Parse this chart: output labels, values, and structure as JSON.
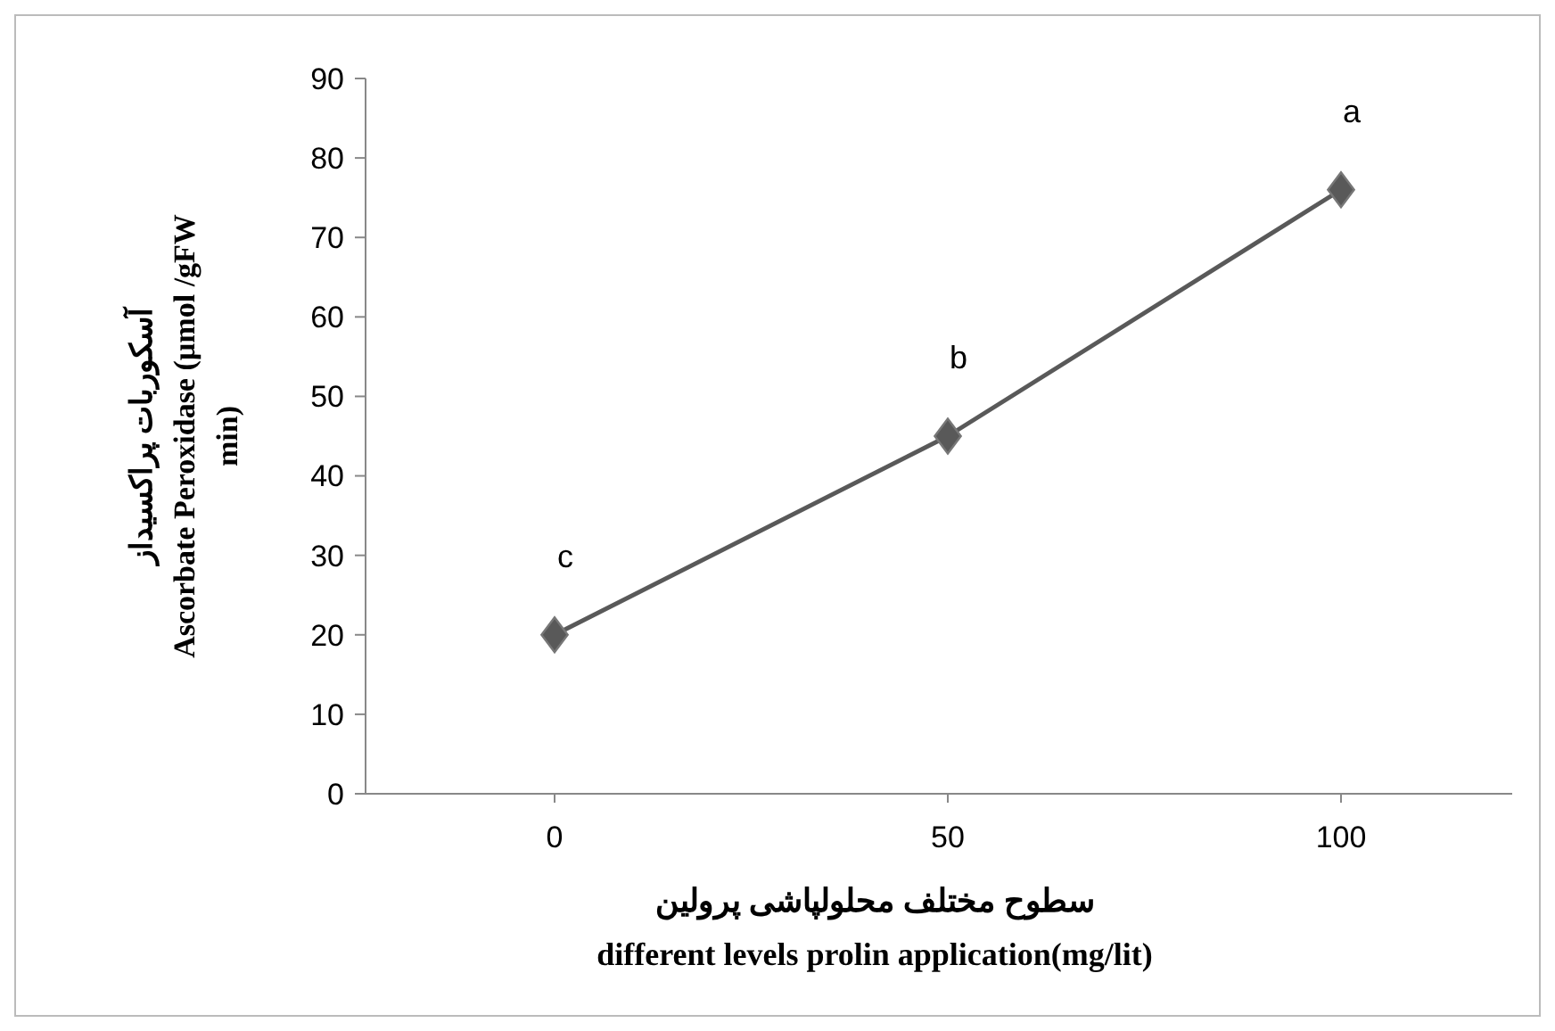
{
  "chart_data": {
    "type": "line",
    "categories": [
      "0",
      "50",
      "100"
    ],
    "series": [
      {
        "color": "#595959",
        "values": [
          20,
          45,
          76
        ]
      }
    ],
    "ylim": [
      0,
      90
    ],
    "yticks": [
      0,
      10,
      20,
      30,
      40,
      50,
      60,
      70,
      80,
      90
    ],
    "xlabel": "سطوح مختلف  محلولپاشی پرولین\ndifferent levels prolin  application(mg/lit)",
    "ylabel": "آسکوربات پراکسیداز\nAscorbate  Peroxidase  (µmol /gFW\nmin)",
    "annotations": [
      {
        "text": "c",
        "x": "0",
        "y": 20
      },
      {
        "text": "b",
        "x": "50",
        "y": 45
      },
      {
        "text": "a",
        "x": "100",
        "y": 76
      }
    ],
    "marker": "diamond",
    "line_style": "solid",
    "grid": false
  }
}
